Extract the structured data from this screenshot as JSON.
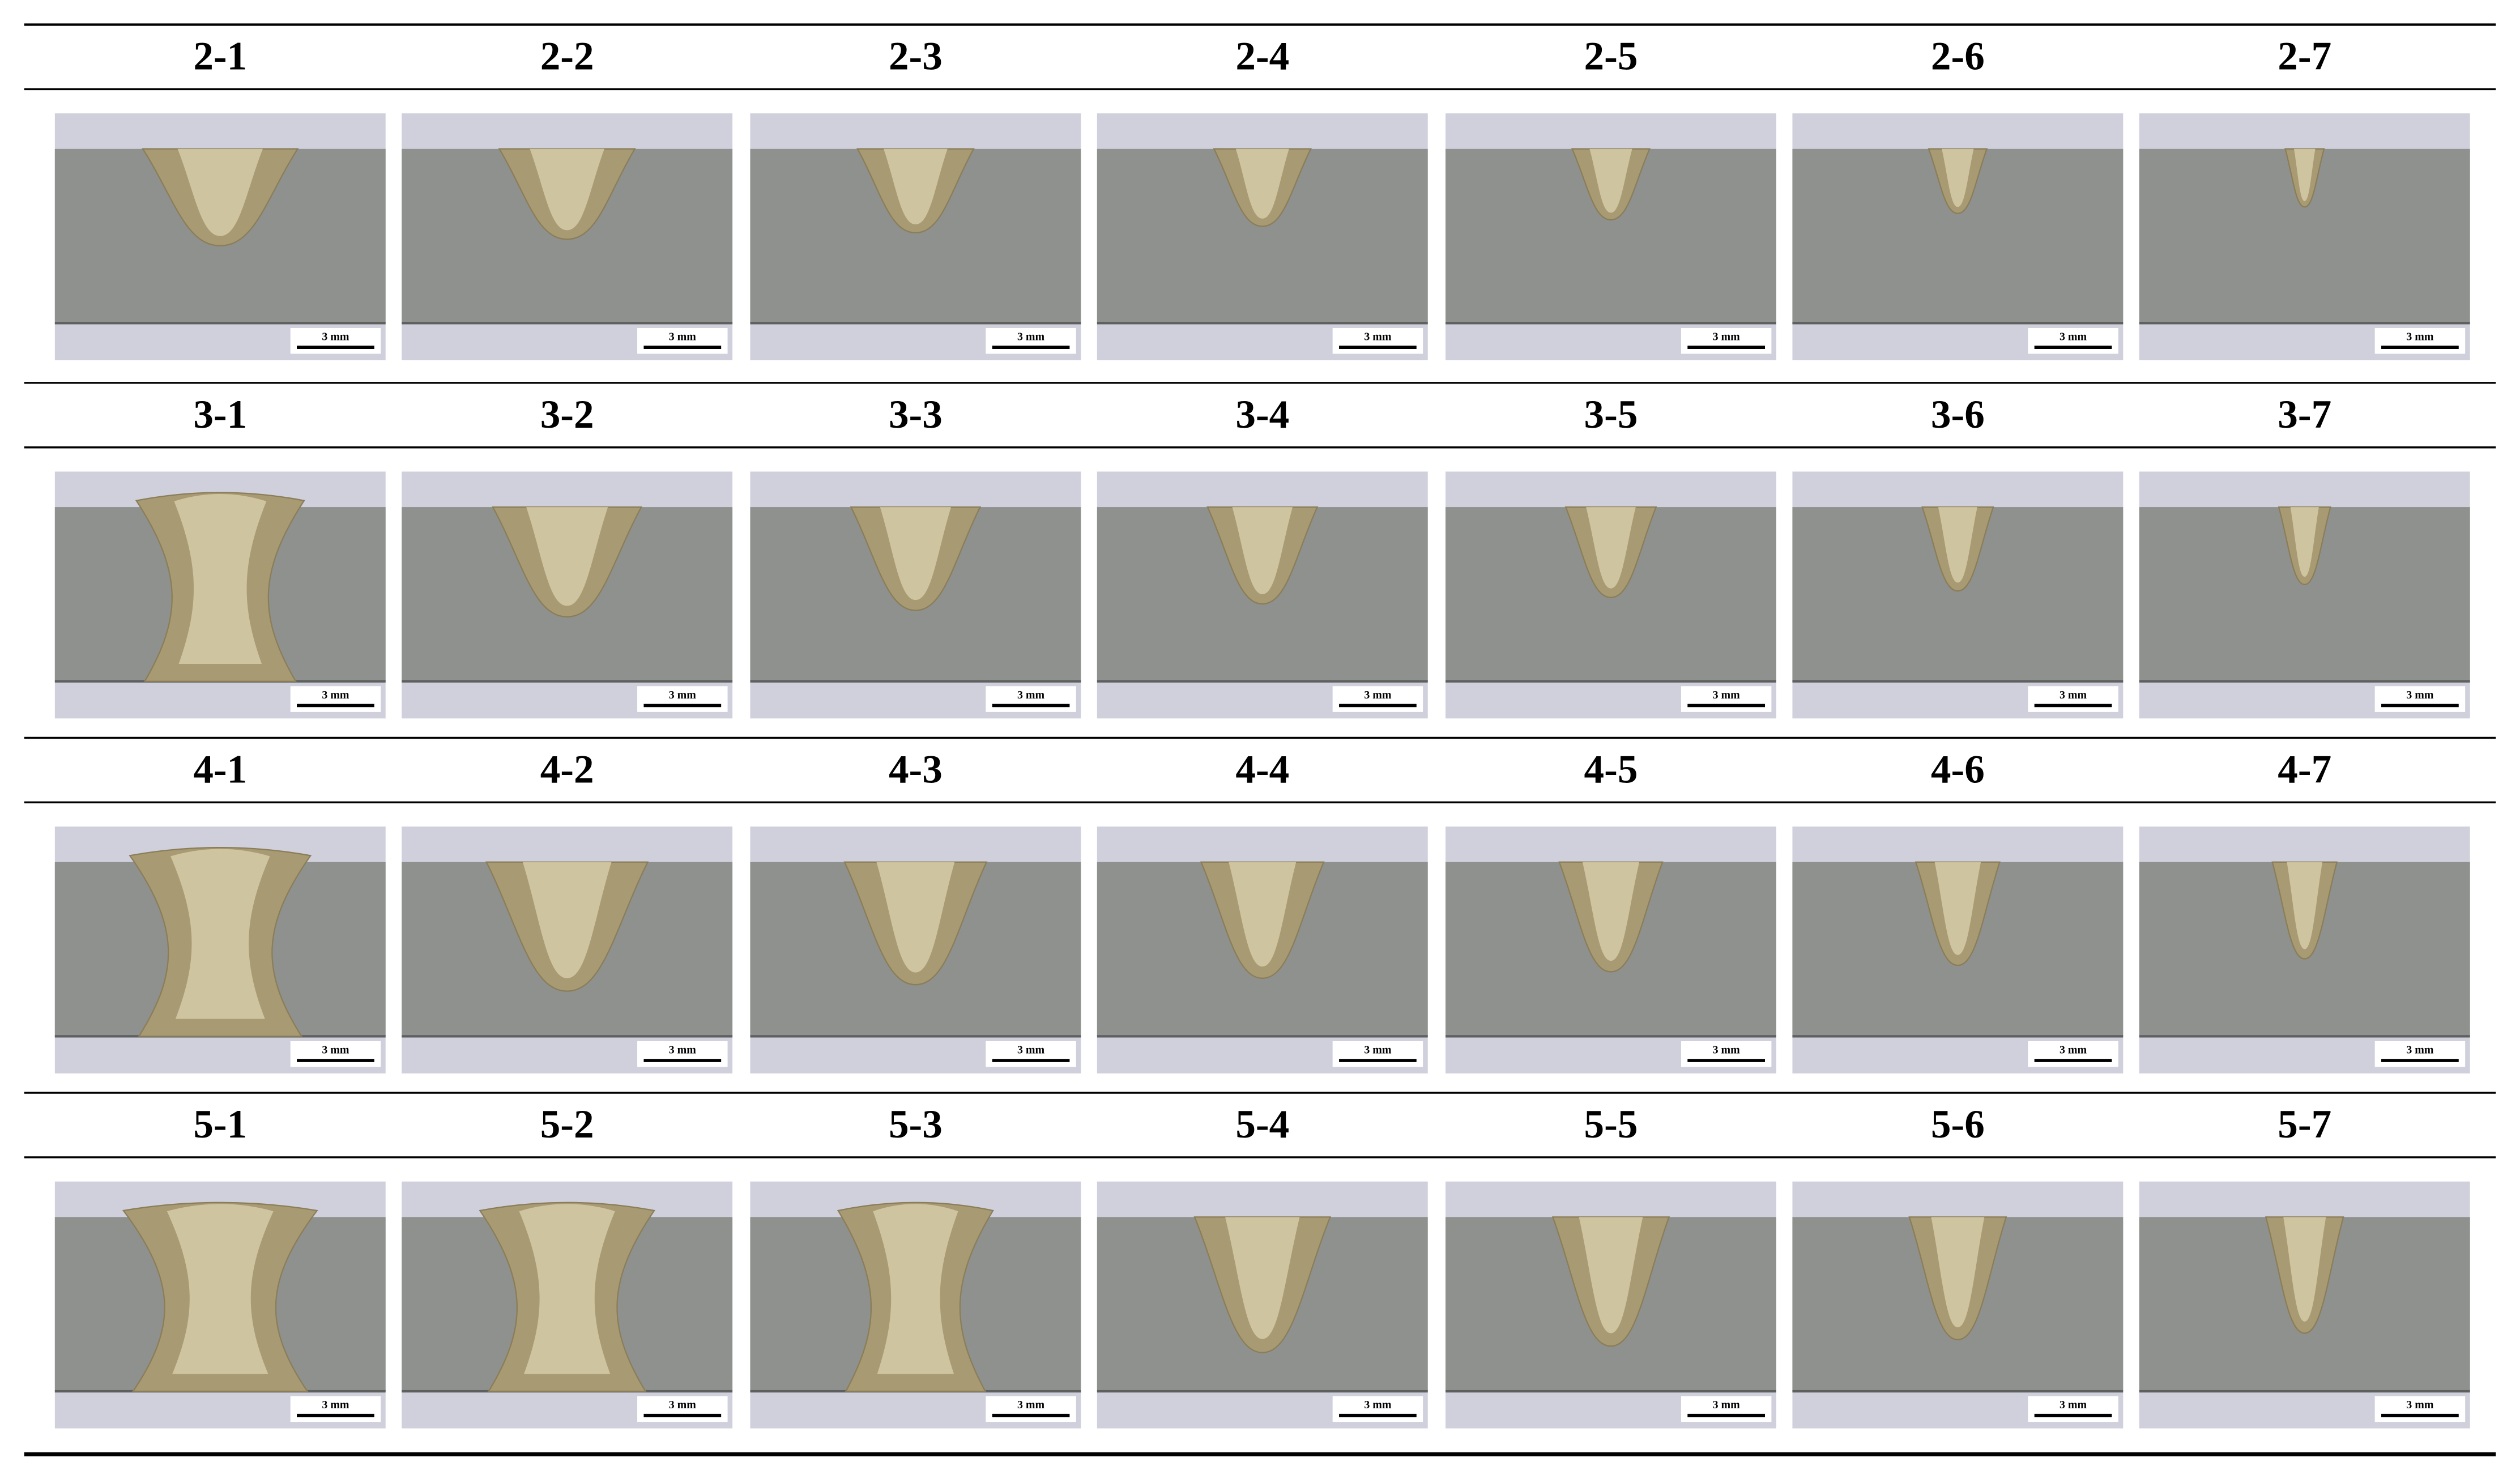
{
  "groups": [
    {
      "labels": [
        "2-1",
        "2-2",
        "2-3",
        "2-4",
        "2-5",
        "2-6",
        "2-7"
      ]
    },
    {
      "labels": [
        "3-1",
        "3-2",
        "3-3",
        "3-4",
        "3-5",
        "3-6",
        "3-7"
      ]
    },
    {
      "labels": [
        "4-1",
        "4-2",
        "4-3",
        "4-4",
        "4-5",
        "4-6",
        "4-7"
      ]
    },
    {
      "labels": [
        "5-1",
        "5-2",
        "5-3",
        "5-4",
        "5-5",
        "5-6",
        "5-7"
      ]
    }
  ],
  "scale_bar": "3 mm"
}
